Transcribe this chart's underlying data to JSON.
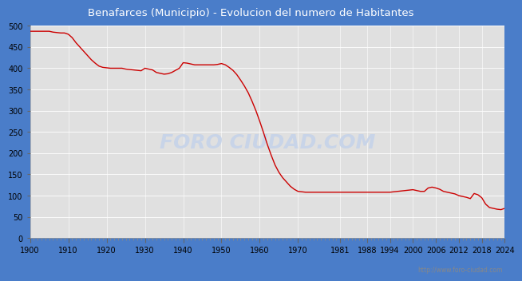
{
  "title": "Benafarces (Municipio) - Evolucion del numero de Habitantes",
  "title_color": "white",
  "title_bg_color": "#4a7dc9",
  "plot_bg_color": "#e0e0e0",
  "line_color": "#cc0000",
  "fill_color": "#e0e0e0",
  "watermark_text": "FORO CIUDAD.COM",
  "watermark_color": "#c8d4e8",
  "url_text": "http://www.foro-ciudad.com",
  "years": [
    1900,
    1901,
    1902,
    1903,
    1904,
    1905,
    1906,
    1907,
    1908,
    1909,
    1910,
    1911,
    1912,
    1913,
    1914,
    1915,
    1916,
    1917,
    1918,
    1919,
    1920,
    1921,
    1922,
    1923,
    1924,
    1925,
    1926,
    1927,
    1928,
    1929,
    1930,
    1931,
    1932,
    1933,
    1934,
    1935,
    1936,
    1937,
    1938,
    1939,
    1940,
    1941,
    1942,
    1943,
    1944,
    1945,
    1946,
    1947,
    1948,
    1949,
    1950,
    1951,
    1952,
    1953,
    1954,
    1955,
    1956,
    1957,
    1958,
    1959,
    1960,
    1961,
    1962,
    1963,
    1964,
    1965,
    1966,
    1967,
    1968,
    1969,
    1970,
    1971,
    1972,
    1973,
    1974,
    1975,
    1976,
    1977,
    1978,
    1979,
    1981,
    1983,
    1986,
    1988,
    1991,
    1994,
    1996,
    1998,
    1999,
    2000,
    2001,
    2002,
    2003,
    2004,
    2005,
    2006,
    2007,
    2008,
    2009,
    2010,
    2011,
    2012,
    2013,
    2014,
    2015,
    2016,
    2017,
    2018,
    2019,
    2020,
    2021,
    2022,
    2023,
    2024
  ],
  "population": [
    487,
    487,
    487,
    487,
    487,
    487,
    485,
    484,
    483,
    483,
    480,
    472,
    460,
    450,
    440,
    430,
    420,
    412,
    405,
    402,
    401,
    400,
    400,
    400,
    400,
    398,
    397,
    396,
    395,
    394,
    400,
    398,
    396,
    390,
    388,
    386,
    387,
    390,
    395,
    400,
    413,
    412,
    410,
    408,
    408,
    408,
    408,
    408,
    408,
    409,
    411,
    408,
    402,
    395,
    385,
    372,
    358,
    342,
    322,
    300,
    275,
    248,
    220,
    195,
    172,
    155,
    142,
    132,
    122,
    115,
    110,
    109,
    108,
    108,
    108,
    108,
    108,
    108,
    108,
    108,
    108,
    108,
    108,
    108,
    108,
    108,
    110,
    112,
    113,
    114,
    112,
    110,
    110,
    118,
    120,
    118,
    115,
    110,
    108,
    106,
    104,
    100,
    98,
    96,
    93,
    105,
    102,
    95,
    80,
    72,
    70,
    68,
    67,
    70
  ],
  "xtick_labels": [
    "1900",
    "1910",
    "1920",
    "1930",
    "1940",
    "1950",
    "1960",
    "1970",
    "1981",
    "1988",
    "1994",
    "2000",
    "2006",
    "2012",
    "2018",
    "2024"
  ],
  "xtick_positions": [
    1900,
    1910,
    1920,
    1930,
    1940,
    1950,
    1960,
    1970,
    1981,
    1988,
    1994,
    2000,
    2006,
    2012,
    2018,
    2024
  ],
  "ytick_labels": [
    "0",
    "50",
    "100",
    "150",
    "200",
    "250",
    "300",
    "350",
    "400",
    "450",
    "500"
  ],
  "ytick_values": [
    0,
    50,
    100,
    150,
    200,
    250,
    300,
    350,
    400,
    450,
    500
  ],
  "xlim": [
    1900,
    2024
  ],
  "ylim": [
    0,
    500
  ]
}
